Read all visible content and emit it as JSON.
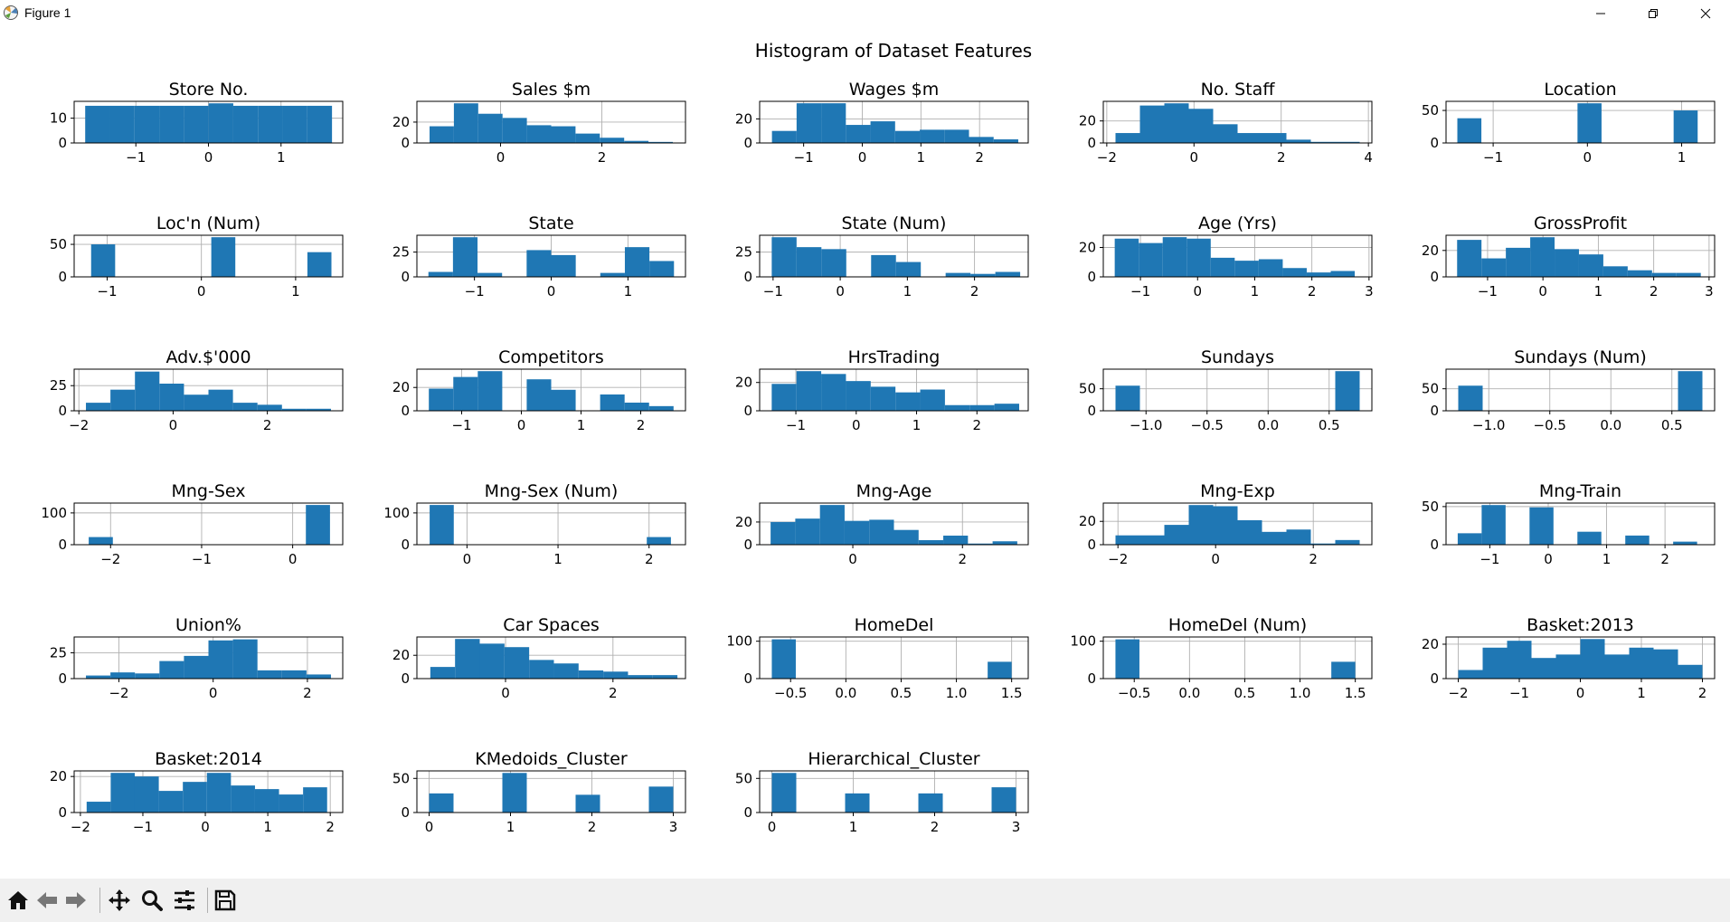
{
  "window": {
    "title": "Figure 1"
  },
  "toolbar": {
    "buttons": [
      {
        "name": "home-icon"
      },
      {
        "name": "back-arrow-icon"
      },
      {
        "name": "forward-arrow-icon"
      },
      {
        "name": "pan-icon"
      },
      {
        "name": "zoom-icon"
      },
      {
        "name": "configure-subplots-icon"
      },
      {
        "name": "save-icon"
      }
    ]
  },
  "colors": {
    "bar": "#1f77b4",
    "grid": "#b0b0b0"
  },
  "chart_data": {
    "type": "bar",
    "title": "Histogram of Dataset Features",
    "grid": true,
    "panels": [
      {
        "title": "Store No.",
        "xlim": [
          -1.85,
          1.85
        ],
        "ylim": [
          0,
          16.8
        ],
        "xticks": [
          -1,
          0,
          1
        ],
        "yticks": [
          0,
          10
        ],
        "bins": [
          -1.698,
          -1.358,
          -1.018,
          -0.678,
          -0.338,
          0.002,
          0.342,
          0.682,
          1.022,
          1.362,
          1.702
        ],
        "counts": [
          15,
          15,
          15,
          15,
          15,
          16,
          15,
          15,
          15,
          15
        ]
      },
      {
        "title": "Sales $m",
        "xlim": [
          -1.65,
          3.65
        ],
        "ylim": [
          0,
          39.9
        ],
        "xticks": [
          0,
          2
        ],
        "yticks": [
          0,
          20
        ],
        "bins": [
          -1.4,
          -0.92,
          -0.44,
          0.04,
          0.52,
          1.0,
          1.48,
          1.96,
          2.44,
          2.92,
          3.4
        ],
        "counts": [
          16,
          38,
          28,
          24,
          17,
          16,
          9,
          5,
          2,
          1
        ]
      },
      {
        "title": "Wages $m",
        "xlim": [
          -1.75,
          2.83
        ],
        "ylim": [
          0,
          34.6
        ],
        "xticks": [
          -1,
          0,
          1,
          2
        ],
        "yticks": [
          0,
          20
        ],
        "bins": [
          -1.54,
          -1.12,
          -0.7,
          -0.28,
          0.14,
          0.56,
          0.98,
          1.4,
          1.82,
          2.24,
          2.66
        ],
        "counts": [
          10,
          33,
          33,
          15,
          18,
          10,
          11,
          11,
          5,
          3
        ]
      },
      {
        "title": "No. Staff",
        "xlim": [
          -2.08,
          4.08
        ],
        "ylim": [
          0,
          37.8
        ],
        "xticks": [
          -2,
          0,
          2,
          4
        ],
        "yticks": [
          0,
          20
        ],
        "bins": [
          -1.8,
          -1.24,
          -0.68,
          -0.12,
          0.44,
          1.0,
          1.56,
          2.12,
          2.68,
          3.24,
          3.8
        ],
        "counts": [
          9,
          34,
          36,
          31,
          17,
          9,
          9,
          3,
          1,
          1
        ]
      },
      {
        "title": "Location",
        "xlim": [
          -1.5,
          1.35
        ],
        "ylim": [
          0,
          64
        ],
        "xticks": [
          -1,
          0,
          1
        ],
        "yticks": [
          0,
          50
        ],
        "bins": [
          -1.38,
          -1.125,
          -0.87,
          -0.615,
          -0.36,
          -0.105,
          0.15,
          0.405,
          0.66,
          0.915,
          1.17
        ],
        "counts": [
          38,
          0,
          0,
          0,
          0,
          61,
          0,
          0,
          0,
          50
        ]
      },
      {
        "title": "Loc'n (Num)",
        "xlim": [
          -1.35,
          1.5
        ],
        "ylim": [
          0,
          64
        ],
        "xticks": [
          -1,
          0,
          1
        ],
        "yticks": [
          0,
          50
        ],
        "bins": [
          -1.17,
          -0.915,
          -0.66,
          -0.405,
          -0.15,
          0.105,
          0.36,
          0.615,
          0.87,
          1.125,
          1.38
        ],
        "counts": [
          50,
          0,
          0,
          0,
          0,
          61,
          0,
          0,
          0,
          38
        ]
      },
      {
        "title": "State",
        "xlim": [
          -1.75,
          1.75
        ],
        "ylim": [
          0,
          42
        ],
        "xticks": [
          -1,
          0,
          1
        ],
        "yticks": [
          0,
          25
        ],
        "bins": [
          -1.6,
          -1.28,
          -0.96,
          -0.64,
          -0.32,
          0.0,
          0.32,
          0.64,
          0.96,
          1.28,
          1.6
        ],
        "counts": [
          5,
          40,
          4,
          0,
          27,
          22,
          0,
          4,
          30,
          16
        ]
      },
      {
        "title": "State (Num)",
        "xlim": [
          -1.2,
          2.8
        ],
        "ylim": [
          0,
          42
        ],
        "xticks": [
          -1,
          0,
          1,
          2
        ],
        "yticks": [
          0,
          25
        ],
        "bins": [
          -1.02,
          -0.65,
          -0.28,
          0.09,
          0.46,
          0.83,
          1.2,
          1.57,
          1.94,
          2.31,
          2.68
        ],
        "counts": [
          40,
          30,
          28,
          0,
          22,
          15,
          0,
          4,
          3,
          5
        ]
      },
      {
        "title": "Age (Yrs)",
        "xlim": [
          -1.65,
          3.05
        ],
        "ylim": [
          0,
          28.3
        ],
        "xticks": [
          -1,
          0,
          1,
          2,
          3
        ],
        "yticks": [
          0,
          20
        ],
        "bins": [
          -1.45,
          -1.03,
          -0.61,
          -0.19,
          0.23,
          0.65,
          1.07,
          1.49,
          1.91,
          2.33,
          2.75
        ],
        "counts": [
          26,
          23,
          27,
          26,
          13,
          11,
          12,
          6,
          3,
          4
        ]
      },
      {
        "title": "GrossProfit",
        "xlim": [
          -1.75,
          3.1
        ],
        "ylim": [
          0,
          31.5
        ],
        "xticks": [
          -1,
          0,
          1,
          2,
          3
        ],
        "yticks": [
          0,
          20
        ],
        "bins": [
          -1.55,
          -1.11,
          -0.67,
          -0.23,
          0.21,
          0.65,
          1.09,
          1.53,
          1.97,
          2.41,
          2.85
        ],
        "counts": [
          28,
          14,
          22,
          30,
          21,
          17,
          8,
          5,
          3,
          3
        ]
      },
      {
        "title": "Adv.$'000",
        "xlim": [
          -2.1,
          3.6
        ],
        "ylim": [
          0,
          41.4
        ],
        "xticks": [
          -2,
          0,
          2
        ],
        "yticks": [
          0,
          25
        ],
        "bins": [
          -1.85,
          -1.33,
          -0.81,
          -0.29,
          0.23,
          0.75,
          1.27,
          1.79,
          2.31,
          2.83,
          3.35
        ],
        "counts": [
          8,
          21,
          39,
          27,
          16,
          21,
          8,
          6,
          2,
          2
        ]
      },
      {
        "title": "Competitors",
        "xlim": [
          -1.75,
          2.75
        ],
        "ylim": [
          0,
          35.7
        ],
        "xticks": [
          -1,
          0,
          1,
          2
        ],
        "yticks": [
          0,
          20
        ],
        "bins": [
          -1.55,
          -1.14,
          -0.73,
          -0.32,
          0.09,
          0.5,
          0.91,
          1.32,
          1.73,
          2.14,
          2.55
        ],
        "counts": [
          19,
          29,
          34,
          0,
          27,
          18,
          0,
          14,
          7,
          4
        ]
      },
      {
        "title": "HrsTrading",
        "xlim": [
          -1.6,
          2.85
        ],
        "ylim": [
          0,
          29.4
        ],
        "xticks": [
          -1,
          0,
          1,
          2
        ],
        "yticks": [
          0,
          20
        ],
        "bins": [
          -1.4,
          -0.99,
          -0.58,
          -0.17,
          0.24,
          0.65,
          1.06,
          1.47,
          1.88,
          2.29,
          2.7
        ],
        "counts": [
          19,
          28,
          26,
          21,
          17,
          13,
          15,
          4,
          4,
          5
        ]
      },
      {
        "title": "Sundays",
        "xlim": [
          -1.35,
          0.85
        ],
        "ylim": [
          0,
          94.5
        ],
        "xticks": [
          -1,
          -0.5,
          0,
          0.5
        ],
        "xtick_labels": [
          "−1.0",
          "−0.5",
          "0.0",
          "0.5"
        ],
        "yticks": [
          0,
          50
        ],
        "bins": [
          -1.25,
          -1.05,
          -0.85,
          -0.65,
          -0.45,
          -0.25,
          -0.05,
          0.15,
          0.35,
          0.55,
          0.75
        ],
        "counts": [
          57,
          0,
          0,
          0,
          0,
          0,
          0,
          0,
          0,
          90
        ]
      },
      {
        "title": "Sundays (Num)",
        "xlim": [
          -1.35,
          0.85
        ],
        "ylim": [
          0,
          94.5
        ],
        "xticks": [
          -1,
          -0.5,
          0,
          0.5
        ],
        "xtick_labels": [
          "−1.0",
          "−0.5",
          "0.0",
          "0.5"
        ],
        "yticks": [
          0,
          50
        ],
        "bins": [
          -1.25,
          -1.05,
          -0.85,
          -0.65,
          -0.45,
          -0.25,
          -0.05,
          0.15,
          0.35,
          0.55,
          0.75
        ],
        "counts": [
          57,
          0,
          0,
          0,
          0,
          0,
          0,
          0,
          0,
          90
        ]
      },
      {
        "title": "Mng-Sex",
        "xlim": [
          -2.4,
          0.55
        ],
        "ylim": [
          0,
          131
        ],
        "xticks": [
          -2,
          -1,
          0
        ],
        "yticks": [
          0,
          100
        ],
        "bins": [
          -2.24,
          -1.975,
          -1.71,
          -1.445,
          -1.18,
          -0.915,
          -0.65,
          -0.385,
          -0.12,
          0.145,
          0.41
        ],
        "counts": [
          24,
          0,
          0,
          0,
          0,
          0,
          0,
          0,
          0,
          125
        ]
      },
      {
        "title": "Mng-Sex (Num)",
        "xlim": [
          -0.55,
          2.4
        ],
        "ylim": [
          0,
          131
        ],
        "xticks": [
          0,
          1,
          2
        ],
        "yticks": [
          0,
          100
        ],
        "bins": [
          -0.41,
          -0.145,
          0.12,
          0.385,
          0.65,
          0.915,
          1.18,
          1.445,
          1.71,
          1.975,
          2.24
        ],
        "counts": [
          125,
          0,
          0,
          0,
          0,
          0,
          0,
          0,
          0,
          24
        ]
      },
      {
        "title": "Mng-Age",
        "xlim": [
          -1.7,
          3.2
        ],
        "ylim": [
          0,
          36.7
        ],
        "xticks": [
          0,
          2
        ],
        "yticks": [
          0,
          20
        ],
        "bins": [
          -1.5,
          -1.05,
          -0.6,
          -0.15,
          0.3,
          0.75,
          1.2,
          1.65,
          2.1,
          2.55,
          3.0
        ],
        "counts": [
          20,
          23,
          35,
          21,
          22,
          13,
          4,
          8,
          1,
          3
        ]
      },
      {
        "title": "Mng-Exp",
        "xlim": [
          -2.3,
          3.2
        ],
        "ylim": [
          0,
          35.7
        ],
        "xticks": [
          -2,
          0,
          2
        ],
        "yticks": [
          0,
          20
        ],
        "bins": [
          -2.05,
          -1.55,
          -1.05,
          -0.55,
          -0.05,
          0.45,
          0.95,
          1.45,
          1.95,
          2.45,
          2.95
        ],
        "counts": [
          8,
          8,
          17,
          34,
          33,
          21,
          11,
          13,
          1,
          4
        ]
      },
      {
        "title": "Mng-Train",
        "xlim": [
          -1.75,
          2.85
        ],
        "ylim": [
          0,
          54.6
        ],
        "xticks": [
          -1,
          0,
          1,
          2
        ],
        "yticks": [
          0,
          50
        ],
        "bins": [
          -1.55,
          -1.14,
          -0.73,
          -0.32,
          0.09,
          0.5,
          0.91,
          1.32,
          1.73,
          2.14,
          2.55
        ],
        "counts": [
          15,
          52,
          0,
          49,
          0,
          17,
          0,
          12,
          0,
          4
        ]
      },
      {
        "title": "Union%",
        "xlim": [
          -2.95,
          2.75
        ],
        "ylim": [
          0,
          40.3
        ],
        "xticks": [
          -2,
          0,
          2
        ],
        "yticks": [
          0,
          25
        ],
        "bins": [
          -2.7,
          -2.18,
          -1.66,
          -1.14,
          -0.62,
          -0.1,
          0.42,
          0.94,
          1.46,
          1.98,
          2.5
        ],
        "counts": [
          3,
          6,
          5,
          17,
          22,
          37,
          38,
          8,
          8,
          4
        ]
      },
      {
        "title": "Car Spaces",
        "xlim": [
          -1.65,
          3.35
        ],
        "ylim": [
          0,
          35.7
        ],
        "xticks": [
          0,
          2
        ],
        "yticks": [
          0,
          20
        ],
        "bins": [
          -1.4,
          -0.94,
          -0.48,
          -0.02,
          0.44,
          0.9,
          1.36,
          1.82,
          2.28,
          2.74,
          3.2
        ],
        "counts": [
          10,
          34,
          30,
          27,
          16,
          13,
          7,
          6,
          3,
          3
        ]
      },
      {
        "title": "HomeDel",
        "xlim": [
          -0.78,
          1.65
        ],
        "ylim": [
          0,
          111.3
        ],
        "xticks": [
          -0.5,
          0,
          0.5,
          1,
          1.5
        ],
        "xtick_labels": [
          "−0.5",
          "0.0",
          "0.5",
          "1.0",
          "1.5"
        ],
        "yticks": [
          0,
          100
        ],
        "bins": [
          -0.67,
          -0.453,
          -0.236,
          -0.019,
          0.198,
          0.415,
          0.632,
          0.849,
          1.066,
          1.283,
          1.5
        ],
        "counts": [
          105,
          0,
          0,
          0,
          0,
          0,
          0,
          0,
          0,
          45
        ]
      },
      {
        "title": "HomeDel (Num)",
        "xlim": [
          -0.78,
          1.65
        ],
        "ylim": [
          0,
          111.3
        ],
        "xticks": [
          -0.5,
          0,
          0.5,
          1,
          1.5
        ],
        "xtick_labels": [
          "−0.5",
          "0.0",
          "0.5",
          "1.0",
          "1.5"
        ],
        "yticks": [
          0,
          100
        ],
        "bins": [
          -0.67,
          -0.453,
          -0.236,
          -0.019,
          0.198,
          0.415,
          0.632,
          0.849,
          1.066,
          1.283,
          1.5
        ],
        "counts": [
          105,
          0,
          0,
          0,
          0,
          0,
          0,
          0,
          0,
          45
        ]
      },
      {
        "title": "Basket:2013",
        "xlim": [
          -2.2,
          2.2
        ],
        "ylim": [
          0,
          24.2
        ],
        "xticks": [
          -2,
          -1,
          0,
          1,
          2
        ],
        "yticks": [
          0,
          20
        ],
        "bins": [
          -2.0,
          -1.6,
          -1.2,
          -0.8,
          -0.4,
          0.0,
          0.4,
          0.8,
          1.2,
          1.6,
          2.0
        ],
        "counts": [
          5,
          18,
          22,
          12,
          14,
          23,
          14,
          18,
          17,
          8
        ]
      },
      {
        "title": "Basket:2014",
        "xlim": [
          -2.1,
          2.2
        ],
        "ylim": [
          0,
          23.1
        ],
        "xticks": [
          -2,
          -1,
          0,
          1,
          2
        ],
        "yticks": [
          0,
          20
        ],
        "bins": [
          -1.9,
          -1.515,
          -1.13,
          -0.745,
          -0.36,
          0.025,
          0.41,
          0.795,
          1.18,
          1.565,
          1.95
        ],
        "counts": [
          6,
          22,
          20,
          12,
          17,
          22,
          15,
          13,
          10,
          14
        ]
      },
      {
        "title": "KMedoids_Cluster",
        "xlim": [
          -0.15,
          3.15
        ],
        "ylim": [
          0,
          61
        ],
        "xticks": [
          0,
          1,
          2,
          3
        ],
        "yticks": [
          0,
          50
        ],
        "bins": [
          0,
          0.3,
          0.6,
          0.9,
          1.2,
          1.5,
          1.8,
          2.1,
          2.4,
          2.7,
          3.0
        ],
        "counts": [
          28,
          0,
          0,
          58,
          0,
          0,
          26,
          0,
          0,
          38
        ]
      },
      {
        "title": "Hierarchical_Cluster",
        "xlim": [
          -0.15,
          3.15
        ],
        "ylim": [
          0,
          61
        ],
        "xticks": [
          0,
          1,
          2,
          3
        ],
        "yticks": [
          0,
          50
        ],
        "bins": [
          0,
          0.3,
          0.6,
          0.9,
          1.2,
          1.5,
          1.8,
          2.1,
          2.4,
          2.7,
          3.0
        ],
        "counts": [
          58,
          0,
          0,
          28,
          0,
          0,
          28,
          0,
          0,
          37
        ]
      }
    ]
  }
}
